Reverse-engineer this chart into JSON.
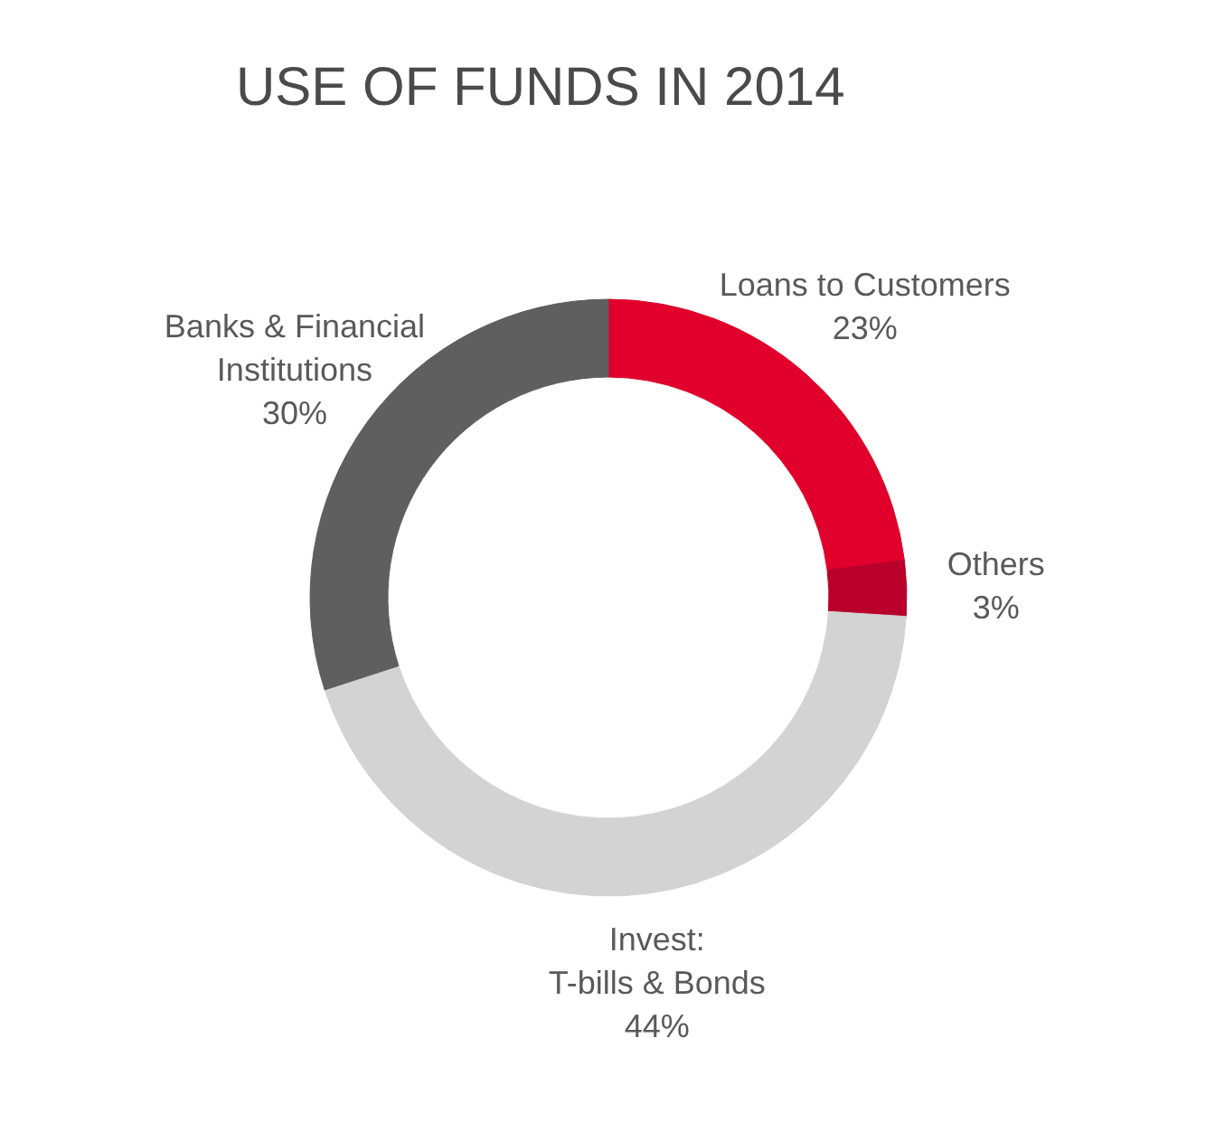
{
  "chart_data": {
    "type": "donut",
    "title": "USE OF FUNDS IN 2014",
    "categories": [
      "Loans to Customers",
      "Others",
      "Invest:\nT-bills & Bonds",
      "Banks & Financial\nInstitutions"
    ],
    "values": [
      23,
      3,
      44,
      30
    ],
    "value_labels": [
      "23%",
      "3%",
      "44%",
      "30%"
    ],
    "colors": [
      "#e0002b",
      "#b9002a",
      "#d3d3d3",
      "#5f5f5f"
    ]
  }
}
